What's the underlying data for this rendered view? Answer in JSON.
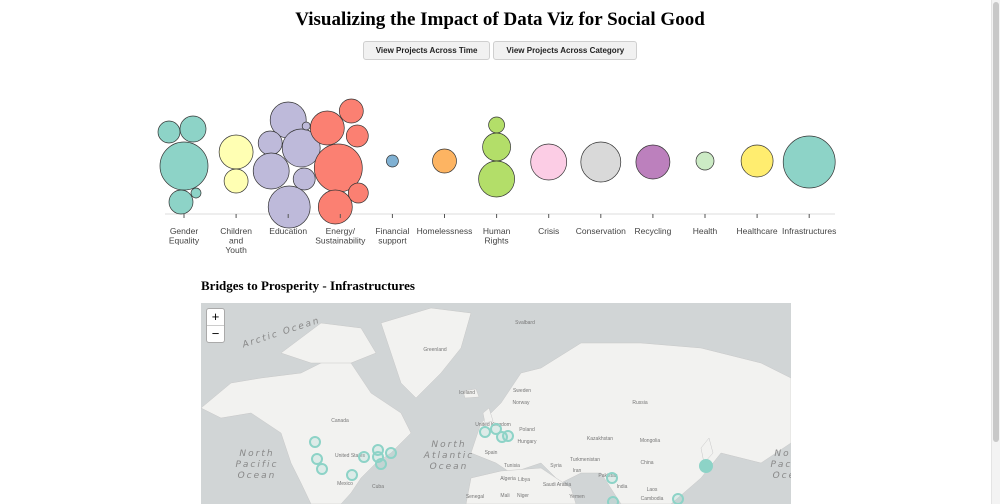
{
  "title": "Visualizing the Impact of Data Viz for Social Good",
  "buttons": {
    "time": "View Projects Across Time",
    "category": "View Projects Across Category"
  },
  "chart_data": {
    "type": "bubble",
    "categories": [
      {
        "label": [
          "Gender",
          "Equality"
        ],
        "color": "#8dd3c7",
        "bubbles": [
          24,
          11,
          13,
          12,
          5
        ]
      },
      {
        "label": [
          "Children",
          "and",
          "Youth"
        ],
        "color": "#ffffb3",
        "bubbles": [
          17,
          12
        ]
      },
      {
        "label": [
          "Education"
        ],
        "color": "#bebada",
        "bubbles": [
          18,
          12,
          19,
          18,
          11,
          21,
          4
        ]
      },
      {
        "label": [
          "Energy/",
          "Sustainability"
        ],
        "color": "#fb8072",
        "bubbles": [
          17,
          12,
          11,
          24,
          17,
          10
        ]
      },
      {
        "label": [
          "Financial",
          "support"
        ],
        "color": "#80b1d3",
        "bubbles": [
          6
        ]
      },
      {
        "label": [
          "Homelessness"
        ],
        "color": "#fdb462",
        "bubbles": [
          12
        ]
      },
      {
        "label": [
          "Human",
          "Rights"
        ],
        "color": "#b3de69",
        "bubbles": [
          8,
          14,
          18
        ]
      },
      {
        "label": [
          "Crisis"
        ],
        "color": "#fccde5",
        "bubbles": [
          18
        ]
      },
      {
        "label": [
          "Conservation"
        ],
        "color": "#d9d9d9",
        "bubbles": [
          20
        ]
      },
      {
        "label": [
          "Recycling"
        ],
        "color": "#bc80bd",
        "bubbles": [
          17
        ]
      },
      {
        "label": [
          "Health"
        ],
        "color": "#ccebc5",
        "bubbles": [
          9
        ]
      },
      {
        "label": [
          "Healthcare"
        ],
        "color": "#ffed6f",
        "bubbles": [
          16
        ]
      },
      {
        "label": [
          "Infrastructures"
        ],
        "color": "#8dd3c7",
        "bubbles": [
          26
        ]
      }
    ]
  },
  "map": {
    "title": "Bridges to Prosperity - Infrastructures",
    "zoom_in": "+",
    "zoom_out": "−",
    "marker_color": "#8dd3c7",
    "oceans": {
      "arctic": "Arctic Ocean",
      "north_atlantic": "North Atlantic Ocean",
      "north_pacific": "North Pacific Ocean",
      "north_pacific_right": "North Pacific Ocean"
    },
    "places": [
      "Svalbard",
      "Greenland",
      "Iceland",
      "Sweden",
      "Norway",
      "Russia",
      "Canada",
      "United Kingdom",
      "Poland",
      "Hungary",
      "Kazakhstan",
      "Mongolia",
      "United States",
      "Spain",
      "Turkmenistan",
      "China",
      "Syria",
      "Iran",
      "Tunisia",
      "Pakistan",
      "Algeria",
      "Libya",
      "Saudi Arabia",
      "India",
      "Mexico",
      "Cuba",
      "Mali",
      "Niger",
      "Senegal",
      "Yemen",
      "Laos",
      "Cambodia"
    ]
  }
}
